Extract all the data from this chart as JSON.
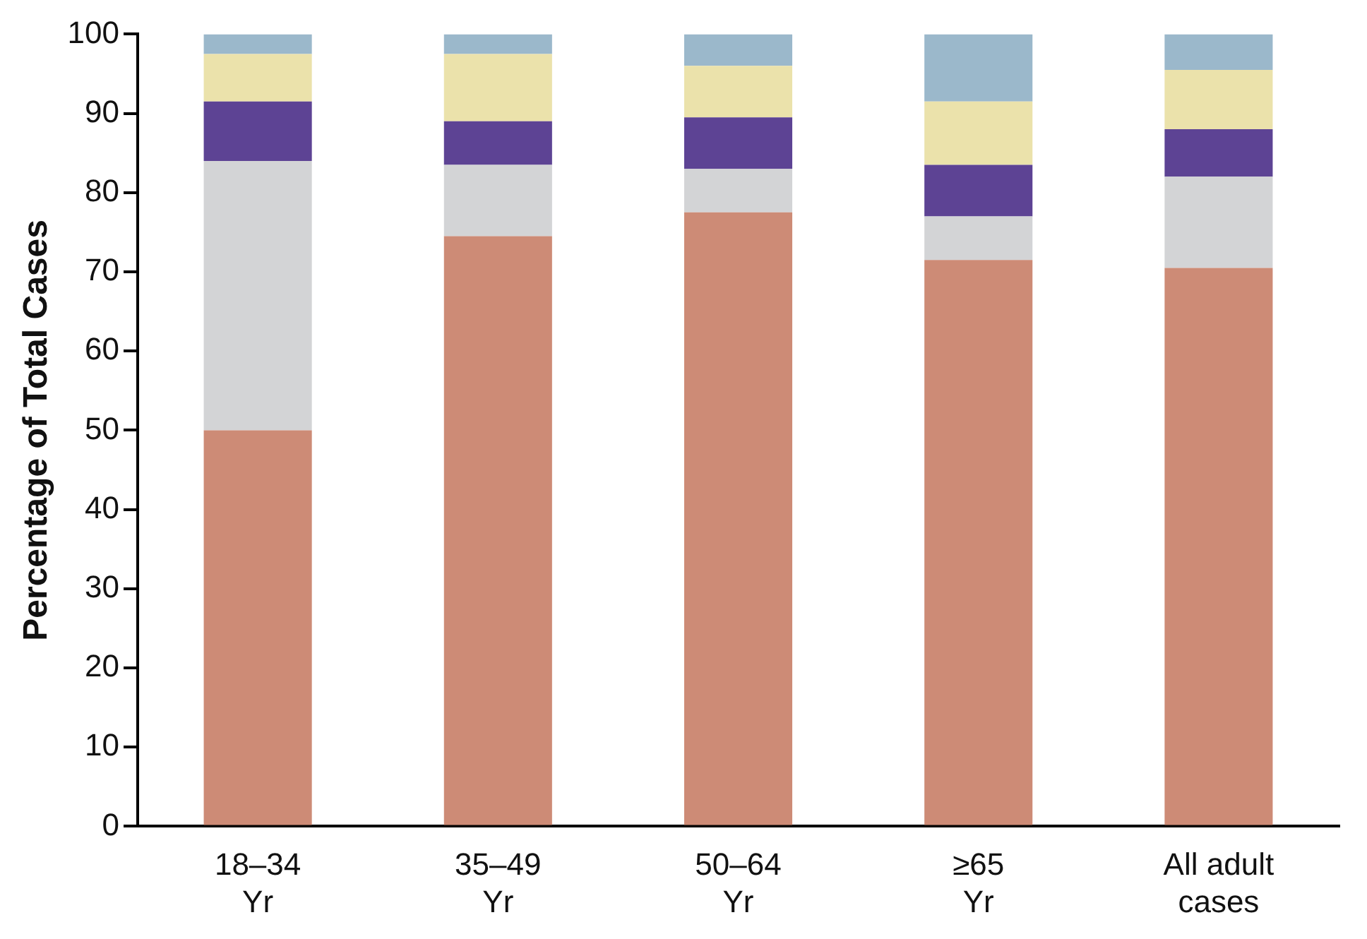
{
  "chart_data": {
    "type": "bar",
    "stacked": true,
    "ylabel": "Percentage of Total Cases",
    "categories": [
      "18–34\nYr",
      "35–49\nYr",
      "50–64\nYr",
      "≥65\nYr",
      "All adult\ncases"
    ],
    "series": [
      {
        "color": "#cd8b76",
        "values": [
          50,
          74.5,
          77.5,
          71.5,
          70.5
        ]
      },
      {
        "color": "#d3d4d6",
        "values": [
          34,
          9,
          5.5,
          5.5,
          11.5
        ]
      },
      {
        "color": "#5d4394",
        "values": [
          7.5,
          5.5,
          6.5,
          6.5,
          6
        ]
      },
      {
        "color": "#ebe2ab",
        "values": [
          6,
          8.5,
          6.5,
          8,
          7.5
        ]
      },
      {
        "color": "#9bb8cb",
        "values": [
          2.5,
          2.5,
          4,
          8.5,
          4.5
        ]
      }
    ],
    "ylim": [
      0,
      100
    ],
    "yticks": [
      0,
      10,
      20,
      30,
      40,
      50,
      60,
      70,
      80,
      90,
      100
    ],
    "grid": false,
    "legend": false
  }
}
